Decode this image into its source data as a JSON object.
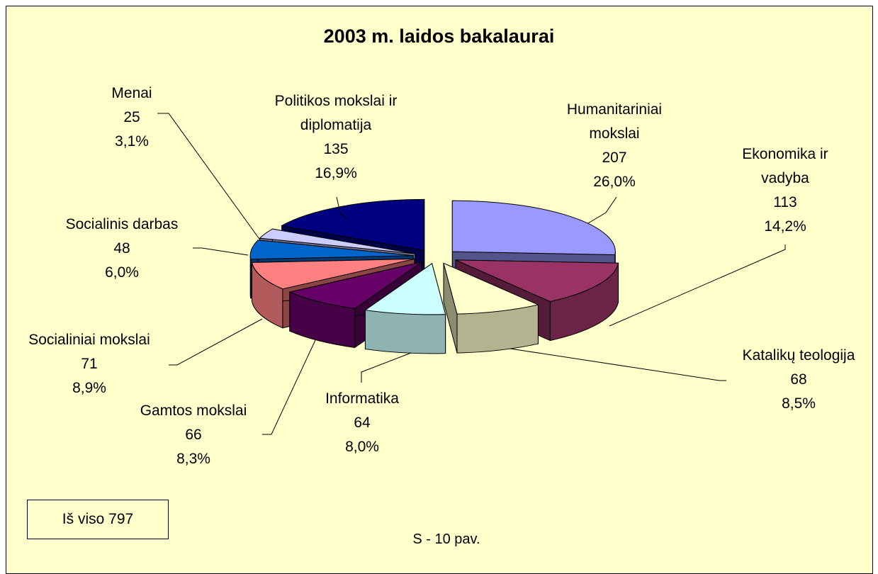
{
  "chart_data": {
    "type": "pie3d",
    "title": "2003 m. laidos bakalaurai",
    "categories": [
      "Humanitariniai mokslai",
      "Ekonomika ir vadyba",
      "Katalikų teologija",
      "Informatika",
      "Gamtos mokslai",
      "Socialiniai mokslai",
      "Socialinis darbas",
      "Menai",
      "Politikos mokslai ir diplomatija"
    ],
    "values": [
      207,
      113,
      68,
      64,
      66,
      71,
      48,
      25,
      135
    ],
    "percents": [
      26.0,
      14.2,
      8.5,
      8.0,
      8.3,
      8.9,
      6.0,
      3.1,
      16.9
    ],
    "percent_labels": [
      "26,0%",
      "14,2%",
      "8,5%",
      "8,0%",
      "8,3%",
      "8,9%",
      "6,0%",
      "3,1%",
      "16,9%"
    ],
    "colors": [
      "#9999ff",
      "#993366",
      "#ffffcc",
      "#ccffff",
      "#660066",
      "#ff8080",
      "#0066cc",
      "#ccccff",
      "#000080"
    ],
    "total_text": "Iš viso 797",
    "caption": "S - 10 pav."
  }
}
